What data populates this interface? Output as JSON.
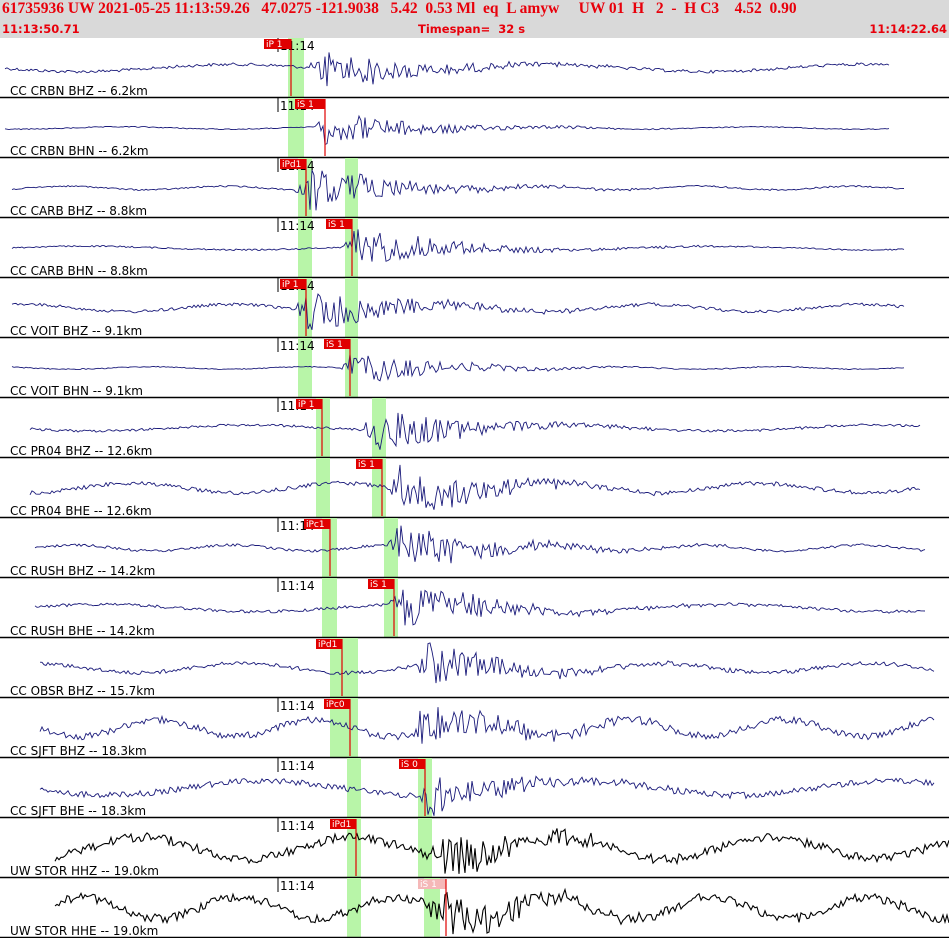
{
  "header": {
    "title": "61735936 UW 2021-05-25 11:13:59.26   47.0275 -121.9038   5.42  0.53 Ml  eq  L amyw     UW 01  H   2  -  H C3    4.52  0.90",
    "start_time": "11:13:50.71",
    "timespan": "Timespan=  32 s",
    "end_time": "11:14:22.64"
  },
  "colors": {
    "header_bg": "#d9d9d9",
    "header_text": "#e8000b",
    "trace_blue": "#1a1a7a",
    "trace_black": "#000000",
    "pick_window": "#b8f5a8",
    "pick_marker": "#e00000",
    "pick_marker_light": "#f5b8b8"
  },
  "minute_marker_label": "11:14",
  "channels": [
    {
      "label": "CC CRBN BHZ -- 6.2km",
      "pick": "iP 1",
      "pick_light": false,
      "minute_marker": true,
      "color": "blue"
    },
    {
      "label": "CC CRBN BHN -- 6.2km",
      "pick": "iS 1",
      "pick_light": false,
      "minute_marker": true,
      "color": "blue"
    },
    {
      "label": "CC CARB BHZ -- 8.8km",
      "pick": "iPd1",
      "pick_light": false,
      "minute_marker": true,
      "color": "blue"
    },
    {
      "label": "CC CARB BHN -- 8.8km",
      "pick": "iS 1",
      "pick_light": false,
      "minute_marker": true,
      "color": "blue"
    },
    {
      "label": "CC VOIT BHZ -- 9.1km",
      "pick": "iP 1",
      "pick_light": false,
      "minute_marker": true,
      "color": "blue"
    },
    {
      "label": "CC VOIT BHN -- 9.1km",
      "pick": "iS 1",
      "pick_light": false,
      "minute_marker": true,
      "color": "blue"
    },
    {
      "label": "CC PR04 BHZ -- 12.6km",
      "pick": "iP 1",
      "pick_light": false,
      "minute_marker": true,
      "color": "blue"
    },
    {
      "label": "CC PR04 BHE -- 12.6km",
      "pick": "iS 1",
      "pick_light": false,
      "minute_marker": false,
      "color": "blue"
    },
    {
      "label": "CC RUSH BHZ -- 14.2km",
      "pick": "iPc1",
      "pick_light": false,
      "minute_marker": true,
      "color": "blue"
    },
    {
      "label": "CC RUSH BHE -- 14.2km",
      "pick": "iS 1",
      "pick_light": false,
      "minute_marker": true,
      "color": "blue"
    },
    {
      "label": "CC OBSR BHZ -- 15.7km",
      "pick": "iPd1",
      "pick_light": false,
      "minute_marker": false,
      "color": "blue"
    },
    {
      "label": "CC SJFT BHZ -- 18.3km",
      "pick": "iPc0",
      "pick_light": false,
      "minute_marker": true,
      "color": "blue"
    },
    {
      "label": "CC SJFT BHE -- 18.3km",
      "pick": "iS 0",
      "pick_light": false,
      "minute_marker": true,
      "color": "blue"
    },
    {
      "label": "UW STOR HHZ -- 19.0km",
      "pick": "iPd1",
      "pick_light": false,
      "minute_marker": true,
      "color": "black"
    },
    {
      "label": "UW STOR HHE -- 19.0km",
      "pick": "iS 1",
      "pick_light": true,
      "minute_marker": true,
      "color": "black"
    }
  ]
}
